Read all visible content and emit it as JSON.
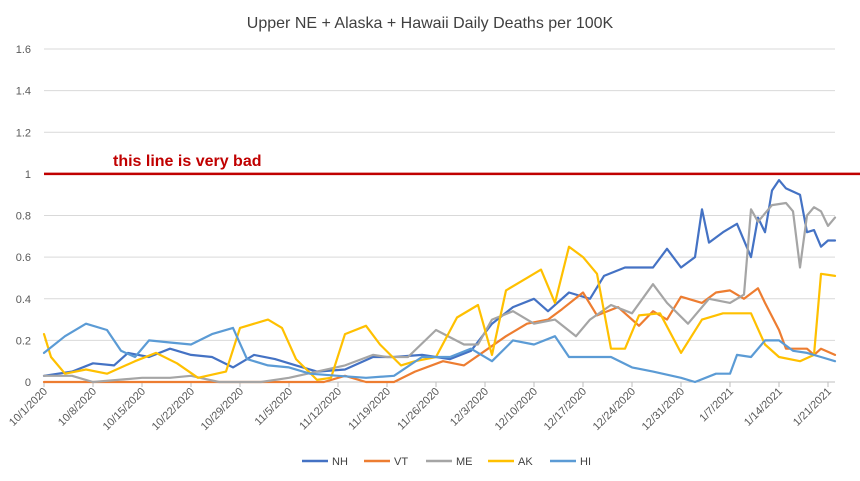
{
  "chart_data": {
    "type": "line",
    "title": "Upper NE + Alaska + Hawaii Daily Deaths per 100K",
    "xlabel": "",
    "ylabel": "",
    "ylim": [
      0,
      1.6
    ],
    "y_ticks": [
      "0",
      "0.2",
      "0.4",
      "0.6",
      "0.8",
      "1",
      "1.2",
      "1.4",
      "1.6"
    ],
    "y_tick_values": [
      0,
      0.2,
      0.4,
      0.6,
      0.8,
      1,
      1.2,
      1.4,
      1.6
    ],
    "x_start": "10/1/2020",
    "x_end": "1/22/2021",
    "x_ticks": [
      "10/1/2020",
      "10/8/2020",
      "10/15/2020",
      "10/22/2020",
      "10/29/2020",
      "11/5/2020",
      "11/12/2020",
      "11/19/2020",
      "11/26/2020",
      "12/3/2020",
      "12/10/2020",
      "12/17/2020",
      "12/24/2020",
      "12/31/2020",
      "1/7/2021",
      "1/14/2021",
      "1/21/2021"
    ],
    "grid": true,
    "legend_position": "bottom",
    "reference_line": {
      "y": 1,
      "label": "this line is very bad",
      "color": "#c00000"
    },
    "series": [
      {
        "name": "NH",
        "color": "#4472c4",
        "points": [
          [
            "10/1/2020",
            0.03
          ],
          [
            "10/5/2020",
            0.05
          ],
          [
            "10/8/2020",
            0.09
          ],
          [
            "10/11/2020",
            0.08
          ],
          [
            "10/13/2020",
            0.14
          ],
          [
            "10/16/2020",
            0.12
          ],
          [
            "10/19/2020",
            0.16
          ],
          [
            "10/22/2020",
            0.13
          ],
          [
            "10/25/2020",
            0.12
          ],
          [
            "10/28/2020",
            0.07
          ],
          [
            "10/31/2020",
            0.13
          ],
          [
            "11/3/2020",
            0.11
          ],
          [
            "11/6/2020",
            0.08
          ],
          [
            "11/9/2020",
            0.05
          ],
          [
            "11/13/2020",
            0.06
          ],
          [
            "11/17/2020",
            0.12
          ],
          [
            "11/20/2020",
            0.12
          ],
          [
            "11/24/2020",
            0.13
          ],
          [
            "11/28/2020",
            0.11
          ],
          [
            "12/1/2020",
            0.15
          ],
          [
            "12/4/2020",
            0.28
          ],
          [
            "12/7/2020",
            0.36
          ],
          [
            "12/10/2020",
            0.4
          ],
          [
            "12/12/2020",
            0.34
          ],
          [
            "12/15/2020",
            0.43
          ],
          [
            "12/18/2020",
            0.4
          ],
          [
            "12/20/2020",
            0.51
          ],
          [
            "12/23/2020",
            0.55
          ],
          [
            "12/27/2020",
            0.55
          ],
          [
            "12/29/2020",
            0.64
          ],
          [
            "12/31/2020",
            0.55
          ],
          [
            "1/2/2021",
            0.6
          ],
          [
            "1/3/2021",
            0.83
          ],
          [
            "1/4/2021",
            0.67
          ],
          [
            "1/6/2021",
            0.72
          ],
          [
            "1/8/2021",
            0.76
          ],
          [
            "1/10/2021",
            0.6
          ],
          [
            "1/11/2021",
            0.79
          ],
          [
            "1/12/2021",
            0.72
          ],
          [
            "1/13/2021",
            0.92
          ],
          [
            "1/14/2021",
            0.97
          ],
          [
            "1/15/2021",
            0.93
          ],
          [
            "1/17/2021",
            0.9
          ],
          [
            "1/18/2021",
            0.72
          ],
          [
            "1/19/2021",
            0.73
          ],
          [
            "1/20/2021",
            0.65
          ],
          [
            "1/21/2021",
            0.68
          ],
          [
            "1/22/2021",
            0.68
          ]
        ]
      },
      {
        "name": "VT",
        "color": "#ed7d31",
        "points": [
          [
            "10/1/2020",
            0.0
          ],
          [
            "11/10/2020",
            0.0
          ],
          [
            "11/13/2020",
            0.03
          ],
          [
            "11/16/2020",
            0.0
          ],
          [
            "11/20/2020",
            0.0
          ],
          [
            "11/23/2020",
            0.05
          ],
          [
            "11/27/2020",
            0.1
          ],
          [
            "11/30/2020",
            0.08
          ],
          [
            "12/3/2020",
            0.15
          ],
          [
            "12/6/2020",
            0.22
          ],
          [
            "12/9/2020",
            0.28
          ],
          [
            "12/12/2020",
            0.3
          ],
          [
            "12/14/2020",
            0.35
          ],
          [
            "12/17/2020",
            0.43
          ],
          [
            "12/19/2020",
            0.32
          ],
          [
            "12/22/2020",
            0.36
          ],
          [
            "12/25/2020",
            0.27
          ],
          [
            "12/27/2020",
            0.34
          ],
          [
            "12/29/2020",
            0.3
          ],
          [
            "12/31/2020",
            0.41
          ],
          [
            "1/3/2021",
            0.38
          ],
          [
            "1/5/2021",
            0.43
          ],
          [
            "1/7/2021",
            0.44
          ],
          [
            "1/9/2021",
            0.4
          ],
          [
            "1/11/2021",
            0.45
          ],
          [
            "1/12/2021",
            0.38
          ],
          [
            "1/14/2021",
            0.25
          ],
          [
            "1/15/2021",
            0.16
          ],
          [
            "1/18/2021",
            0.16
          ],
          [
            "1/19/2021",
            0.13
          ],
          [
            "1/20/2021",
            0.16
          ],
          [
            "1/22/2021",
            0.13
          ]
        ]
      },
      {
        "name": "ME",
        "color": "#a5a5a5",
        "points": [
          [
            "10/1/2020",
            0.03
          ],
          [
            "10/5/2020",
            0.03
          ],
          [
            "10/8/2020",
            0.0
          ],
          [
            "10/15/2020",
            0.02
          ],
          [
            "10/19/2020",
            0.02
          ],
          [
            "10/22/2020",
            0.03
          ],
          [
            "10/26/2020",
            0.0
          ],
          [
            "11/1/2020",
            0.0
          ],
          [
            "11/5/2020",
            0.02
          ],
          [
            "11/9/2020",
            0.05
          ],
          [
            "11/13/2020",
            0.08
          ],
          [
            "11/17/2020",
            0.13
          ],
          [
            "11/19/2020",
            0.12
          ],
          [
            "11/22/2020",
            0.12
          ],
          [
            "11/26/2020",
            0.25
          ],
          [
            "11/30/2020",
            0.18
          ],
          [
            "12/2/2020",
            0.18
          ],
          [
            "12/4/2020",
            0.3
          ],
          [
            "12/7/2020",
            0.34
          ],
          [
            "12/10/2020",
            0.28
          ],
          [
            "12/13/2020",
            0.3
          ],
          [
            "12/16/2020",
            0.22
          ],
          [
            "12/18/2020",
            0.3
          ],
          [
            "12/21/2020",
            0.37
          ],
          [
            "12/24/2020",
            0.33
          ],
          [
            "12/27/2020",
            0.47
          ],
          [
            "12/29/2020",
            0.38
          ],
          [
            "1/1/2021",
            0.28
          ],
          [
            "1/4/2021",
            0.4
          ],
          [
            "1/7/2021",
            0.38
          ],
          [
            "1/9/2021",
            0.42
          ],
          [
            "1/10/2021",
            0.83
          ],
          [
            "1/11/2021",
            0.77
          ],
          [
            "1/13/2021",
            0.85
          ],
          [
            "1/15/2021",
            0.86
          ],
          [
            "1/16/2021",
            0.82
          ],
          [
            "1/17/2021",
            0.55
          ],
          [
            "1/18/2021",
            0.8
          ],
          [
            "1/19/2021",
            0.84
          ],
          [
            "1/20/2021",
            0.82
          ],
          [
            "1/21/2021",
            0.75
          ],
          [
            "1/22/2021",
            0.79
          ]
        ]
      },
      {
        "name": "AK",
        "color": "#ffc000",
        "points": [
          [
            "10/1/2020",
            0.23
          ],
          [
            "10/2/2020",
            0.12
          ],
          [
            "10/4/2020",
            0.04
          ],
          [
            "10/7/2020",
            0.06
          ],
          [
            "10/10/2020",
            0.04
          ],
          [
            "10/14/2020",
            0.1
          ],
          [
            "10/17/2020",
            0.14
          ],
          [
            "10/20/2020",
            0.09
          ],
          [
            "10/23/2020",
            0.02
          ],
          [
            "10/27/2020",
            0.05
          ],
          [
            "10/29/2020",
            0.26
          ],
          [
            "11/2/2020",
            0.3
          ],
          [
            "11/4/2020",
            0.26
          ],
          [
            "11/6/2020",
            0.11
          ],
          [
            "11/9/2020",
            0.01
          ],
          [
            "11/11/2020",
            0.02
          ],
          [
            "11/13/2020",
            0.23
          ],
          [
            "11/16/2020",
            0.27
          ],
          [
            "11/18/2020",
            0.18
          ],
          [
            "11/21/2020",
            0.08
          ],
          [
            "11/23/2020",
            0.1
          ],
          [
            "11/26/2020",
            0.12
          ],
          [
            "11/29/2020",
            0.31
          ],
          [
            "12/2/2020",
            0.37
          ],
          [
            "12/4/2020",
            0.13
          ],
          [
            "12/6/2020",
            0.44
          ],
          [
            "12/9/2020",
            0.5
          ],
          [
            "12/11/2020",
            0.54
          ],
          [
            "12/13/2020",
            0.38
          ],
          [
            "12/15/2020",
            0.65
          ],
          [
            "12/17/2020",
            0.6
          ],
          [
            "12/19/2020",
            0.52
          ],
          [
            "12/21/2020",
            0.16
          ],
          [
            "12/23/2020",
            0.16
          ],
          [
            "12/25/2020",
            0.32
          ],
          [
            "12/28/2020",
            0.33
          ],
          [
            "12/31/2020",
            0.14
          ],
          [
            "1/3/2021",
            0.3
          ],
          [
            "1/6/2021",
            0.33
          ],
          [
            "1/10/2021",
            0.33
          ],
          [
            "1/12/2021",
            0.18
          ],
          [
            "1/14/2021",
            0.12
          ],
          [
            "1/17/2021",
            0.1
          ],
          [
            "1/19/2021",
            0.13
          ],
          [
            "1/20/2021",
            0.52
          ],
          [
            "1/22/2021",
            0.51
          ]
        ]
      },
      {
        "name": "HI",
        "color": "#5b9bd5",
        "points": [
          [
            "10/1/2020",
            0.14
          ],
          [
            "10/4/2020",
            0.22
          ],
          [
            "10/7/2020",
            0.28
          ],
          [
            "10/10/2020",
            0.25
          ],
          [
            "10/12/2020",
            0.15
          ],
          [
            "10/14/2020",
            0.12
          ],
          [
            "10/16/2020",
            0.2
          ],
          [
            "10/19/2020",
            0.19
          ],
          [
            "10/22/2020",
            0.18
          ],
          [
            "10/25/2020",
            0.23
          ],
          [
            "10/28/2020",
            0.26
          ],
          [
            "10/30/2020",
            0.11
          ],
          [
            "11/2/2020",
            0.08
          ],
          [
            "11/5/2020",
            0.07
          ],
          [
            "11/8/2020",
            0.04
          ],
          [
            "11/12/2020",
            0.03
          ],
          [
            "11/16/2020",
            0.02
          ],
          [
            "11/20/2020",
            0.03
          ],
          [
            "11/24/2020",
            0.12
          ],
          [
            "11/28/2020",
            0.12
          ],
          [
            "12/1/2020",
            0.16
          ],
          [
            "12/4/2020",
            0.1
          ],
          [
            "12/7/2020",
            0.2
          ],
          [
            "12/10/2020",
            0.18
          ],
          [
            "12/13/2020",
            0.22
          ],
          [
            "12/15/2020",
            0.12
          ],
          [
            "12/18/2020",
            0.12
          ],
          [
            "12/21/2020",
            0.12
          ],
          [
            "12/24/2020",
            0.07
          ],
          [
            "12/27/2020",
            0.05
          ],
          [
            "12/31/2020",
            0.02
          ],
          [
            "1/2/2021",
            0.0
          ],
          [
            "1/5/2021",
            0.04
          ],
          [
            "1/7/2021",
            0.04
          ],
          [
            "1/8/2021",
            0.13
          ],
          [
            "1/10/2021",
            0.12
          ],
          [
            "1/12/2021",
            0.2
          ],
          [
            "1/14/2021",
            0.2
          ],
          [
            "1/16/2021",
            0.15
          ],
          [
            "1/18/2021",
            0.14
          ],
          [
            "1/20/2021",
            0.12
          ],
          [
            "1/22/2021",
            0.1
          ]
        ]
      }
    ]
  }
}
